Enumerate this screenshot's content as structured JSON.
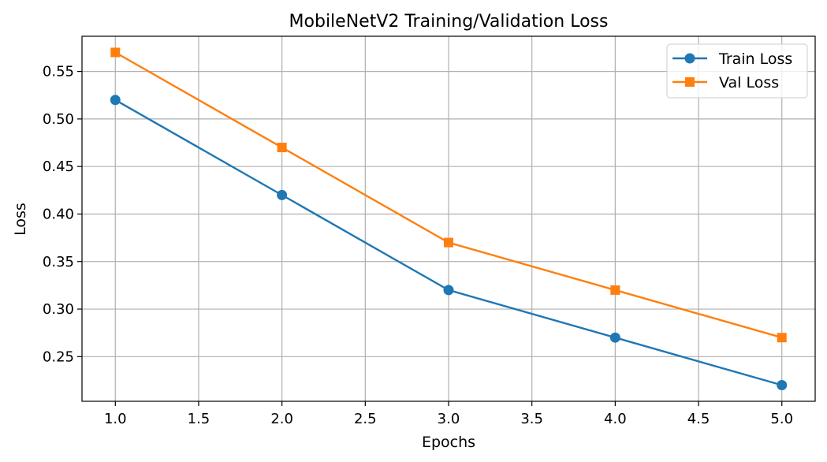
{
  "chart_data": {
    "type": "line",
    "title": "MobileNetV2 Training/Validation Loss",
    "xlabel": "Epochs",
    "ylabel": "Loss",
    "x": [
      1,
      2,
      3,
      4,
      5
    ],
    "xlim": [
      0.8,
      5.2
    ],
    "ylim": [
      0.203,
      0.587
    ],
    "xticks": [
      "1.0",
      "1.5",
      "2.0",
      "2.5",
      "3.0",
      "3.5",
      "4.0",
      "4.5",
      "5.0"
    ],
    "yticks": [
      "0.25",
      "0.30",
      "0.35",
      "0.40",
      "0.45",
      "0.50",
      "0.55"
    ],
    "grid": true,
    "legend_position": "top-right",
    "series": [
      {
        "name": "Train Loss",
        "values": [
          0.52,
          0.42,
          0.32,
          0.27,
          0.22
        ],
        "color": "#1f77b4",
        "marker": "circle"
      },
      {
        "name": "Val Loss",
        "values": [
          0.57,
          0.47,
          0.37,
          0.32,
          0.27
        ],
        "color": "#ff7f0e",
        "marker": "square"
      }
    ]
  }
}
